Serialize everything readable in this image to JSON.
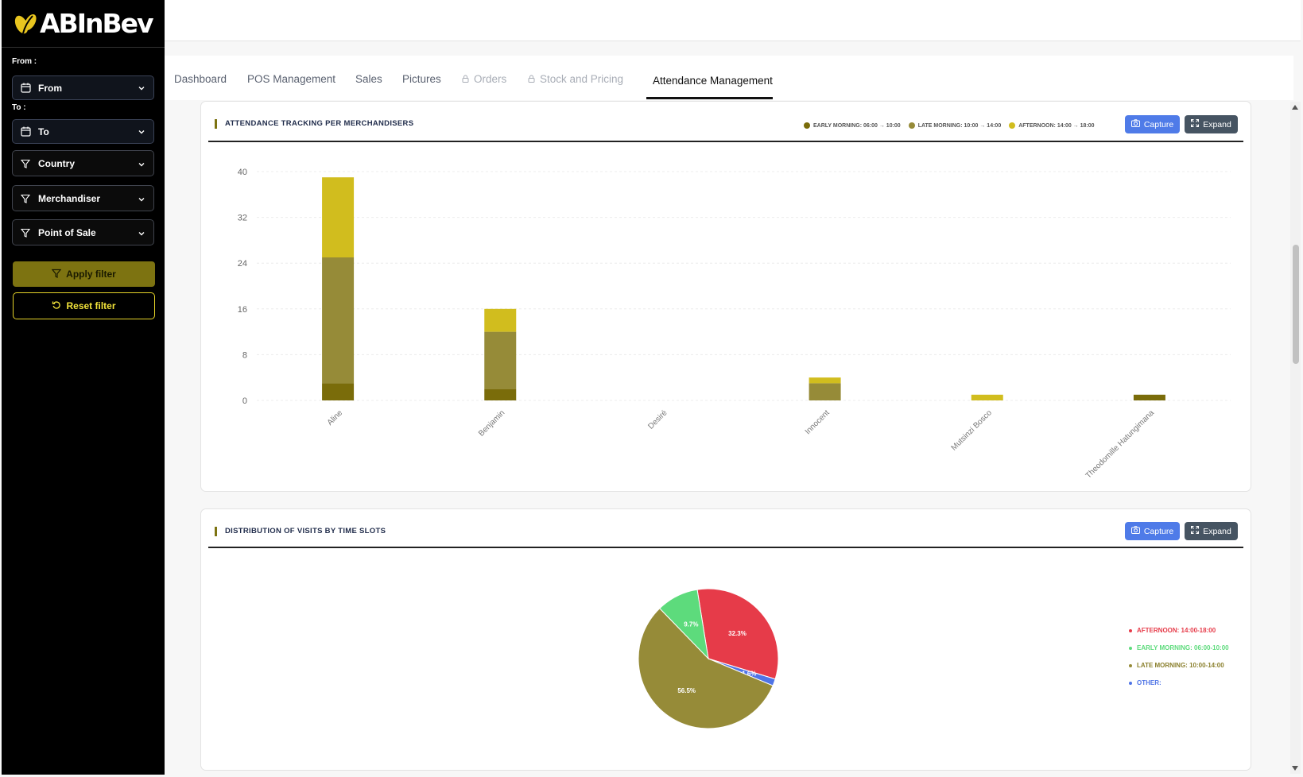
{
  "brand": {
    "logo_text": "ABInBev"
  },
  "sidebar": {
    "from_label": "From :",
    "from_value": "From",
    "to_label": "To :",
    "to_value": "To",
    "filters": [
      "Country",
      "Merchandiser",
      "Point of Sale"
    ],
    "apply_label": "Apply filter",
    "reset_label": "Reset filter"
  },
  "tabs": [
    {
      "label": "Dashboard",
      "locked": false,
      "active": false
    },
    {
      "label": "POS Management",
      "locked": false,
      "active": false
    },
    {
      "label": "Sales",
      "locked": false,
      "active": false
    },
    {
      "label": "Pictures",
      "locked": false,
      "active": false
    },
    {
      "label": "Orders",
      "locked": true,
      "active": false
    },
    {
      "label": "Stock and Pricing",
      "locked": true,
      "active": false
    },
    {
      "label": "Attendance Management",
      "locked": false,
      "active": true
    }
  ],
  "buttons": {
    "capture": "Capture",
    "expand": "Expand"
  },
  "colors": {
    "early_morning": "#7a6c0a",
    "late_morning": "#968b38",
    "afternoon": "#d1bd1e",
    "pie_afternoon": "#e63b49",
    "pie_early": "#5ddb7c",
    "pie_late": "#968b38",
    "pie_other": "#4f74e6"
  },
  "chart_data": [
    {
      "type": "bar",
      "stacked": true,
      "title": "ATTENDANCE TRACKING PER MERCHANDISERS",
      "categories": [
        "Aline",
        "Benjamin",
        "Desiré",
        "Innocent",
        "Mutsinzi Bosco",
        "Theodomille Hatungimana"
      ],
      "series": [
        {
          "name": "EARLY MORNING: 06:00 → 10:00",
          "values": [
            3,
            2,
            0,
            0,
            0,
            1
          ]
        },
        {
          "name": "LATE MORNING: 10:00 → 14:00",
          "values": [
            22,
            10,
            0,
            3,
            0,
            0
          ]
        },
        {
          "name": "AFTERNOON: 14:00 → 18:00",
          "values": [
            14,
            4,
            0,
            1,
            1,
            0
          ]
        }
      ],
      "y_ticks": [
        0,
        8,
        16,
        24,
        32,
        40
      ],
      "ylim": [
        0,
        40
      ],
      "grid": true,
      "legend": "top-right"
    },
    {
      "type": "pie",
      "title": "DISTRIBUTION OF VISITS BY TIME SLOTS",
      "slices": [
        {
          "name": "AFTERNOON: 14:00-18:00",
          "value": 32.3,
          "label": "32.3%"
        },
        {
          "name": "OTHER:",
          "value": 1.6,
          "label": "1.6%"
        },
        {
          "name": "LATE MORNING: 10:00-14:00",
          "value": 56.5,
          "label": "56.5%"
        },
        {
          "name": "EARLY MORNING: 06:00-10:00",
          "value": 9.7,
          "label": "9.7%"
        }
      ],
      "legend_order": [
        "AFTERNOON: 14:00-18:00",
        "EARLY MORNING: 06:00-10:00",
        "LATE MORNING: 10:00-14:00",
        "OTHER:"
      ],
      "legend": "right"
    }
  ]
}
